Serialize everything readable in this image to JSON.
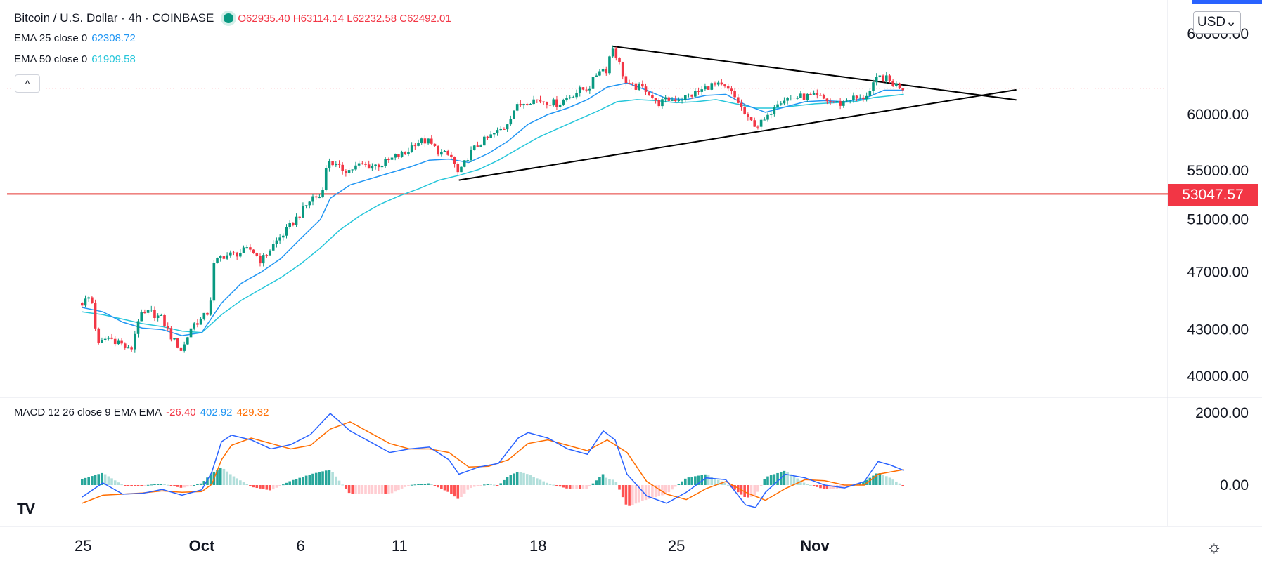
{
  "symbol": {
    "title": "Bitcoin / U.S. Dollar · 4h · COINBASE",
    "ohlc": "O62935.40 H63114.14 L62232.58 C62492.01"
  },
  "indicators": {
    "ema25": {
      "label": "EMA 25 close 0",
      "value": "62308.72",
      "color": "#2196f3"
    },
    "ema50": {
      "label": "EMA 50 close 0",
      "value": "61909.58",
      "color": "#26c6da"
    },
    "macd": {
      "label": "MACD 12 26 close 9 EMA EMA",
      "hist": "-26.40",
      "macd": "402.92",
      "signal": "429.32"
    }
  },
  "controls": {
    "collapse_label": "^",
    "currency_label": "USD",
    "gear_label": "☼",
    "logo_label": "TV"
  },
  "price_badge": "53047.57",
  "colors": {
    "up": "#089981",
    "down": "#f23645",
    "trend": "#000000",
    "support": "#e53935"
  },
  "chart_data": {
    "type": "candlestick",
    "title": "Bitcoin / U.S. Dollar 4h",
    "y_axis_ticks": [
      "68000.00",
      "60000.00",
      "55000.00",
      "51000.00",
      "47000.00",
      "43000.00",
      "40000.00"
    ],
    "macd_axis_ticks": [
      "2000.00",
      "0.00"
    ],
    "x_axis_ticks": [
      "25",
      "Oct",
      "6",
      "11",
      "18",
      "25",
      "Nov"
    ],
    "horizontal_level": 53047.57,
    "trendlines": [
      {
        "name": "upper",
        "from": [
          20.75,
          66700
        ],
        "to": [
          35.5,
          62850
        ]
      },
      {
        "name": "lower",
        "from": [
          13.0,
          54200
        ],
        "to": [
          35.5,
          60700
        ]
      }
    ],
    "close_path": [
      [
        -6.05,
        44800
      ],
      [
        -5.6,
        45300
      ],
      [
        -5.25,
        41900
      ],
      [
        -4.8,
        42500
      ],
      [
        -4.2,
        42200
      ],
      [
        -3.6,
        41500
      ],
      [
        -3.2,
        43800
      ],
      [
        -2.6,
        44200
      ],
      [
        -2.0,
        43700
      ],
      [
        -1.5,
        42400
      ],
      [
        -1.0,
        41600
      ],
      [
        -0.5,
        43300
      ],
      [
        0.0,
        43700
      ],
      [
        0.4,
        44300
      ],
      [
        0.6,
        47500
      ],
      [
        1.0,
        48200
      ],
      [
        1.6,
        48300
      ],
      [
        2.0,
        48500
      ],
      [
        2.5,
        48700
      ],
      [
        3.0,
        47800
      ],
      [
        3.6,
        49000
      ],
      [
        4.2,
        50000
      ],
      [
        5.0,
        51500
      ],
      [
        5.6,
        52800
      ],
      [
        6.0,
        52800
      ],
      [
        6.4,
        56000
      ],
      [
        6.9,
        55200
      ],
      [
        7.4,
        55000
      ],
      [
        8.0,
        55500
      ],
      [
        8.6,
        55400
      ],
      [
        9.2,
        55600
      ],
      [
        9.8,
        56200
      ],
      [
        10.3,
        56500
      ],
      [
        10.8,
        57500
      ],
      [
        11.4,
        57600
      ],
      [
        12.0,
        56600
      ],
      [
        12.6,
        56200
      ],
      [
        13.0,
        54600
      ],
      [
        13.5,
        56400
      ],
      [
        14.0,
        57300
      ],
      [
        14.6,
        58000
      ],
      [
        15.3,
        58800
      ],
      [
        15.8,
        60500
      ],
      [
        16.4,
        61300
      ],
      [
        16.9,
        61400
      ],
      [
        17.5,
        61200
      ],
      [
        18.0,
        61000
      ],
      [
        18.5,
        61600
      ],
      [
        19.0,
        62200
      ],
      [
        19.6,
        62600
      ],
      [
        20.1,
        64400
      ],
      [
        20.45,
        64300
      ],
      [
        20.75,
        66700
      ],
      [
        21.0,
        65500
      ],
      [
        21.5,
        62700
      ],
      [
        22.0,
        62600
      ],
      [
        22.5,
        62400
      ],
      [
        23.0,
        61000
      ],
      [
        23.6,
        61400
      ],
      [
        24.2,
        61500
      ],
      [
        24.7,
        61800
      ],
      [
        25.2,
        62200
      ],
      [
        25.7,
        62800
      ],
      [
        26.2,
        62700
      ],
      [
        26.7,
        62200
      ],
      [
        27.1,
        61200
      ],
      [
        27.6,
        59500
      ],
      [
        28.1,
        59000
      ],
      [
        28.6,
        59600
      ],
      [
        29.0,
        61200
      ],
      [
        29.5,
        61500
      ],
      [
        30.0,
        61600
      ],
      [
        30.6,
        61700
      ],
      [
        31.2,
        61600
      ],
      [
        31.8,
        61200
      ],
      [
        32.3,
        61000
      ],
      [
        32.8,
        61600
      ],
      [
        33.3,
        61400
      ],
      [
        33.8,
        62200
      ],
      [
        34.2,
        63600
      ],
      [
        34.6,
        63400
      ],
      [
        35.0,
        62900
      ],
      [
        35.5,
        62500
      ]
    ],
    "ema25_path": [
      [
        -6.05,
        44500
      ],
      [
        -5.0,
        44200
      ],
      [
        -4.0,
        43500
      ],
      [
        -3.0,
        43100
      ],
      [
        -2.0,
        43000
      ],
      [
        -1.0,
        42600
      ],
      [
        0.0,
        42800
      ],
      [
        1.0,
        44800
      ],
      [
        2.0,
        46200
      ],
      [
        3.0,
        47000
      ],
      [
        4.0,
        48000
      ],
      [
        5.0,
        49500
      ],
      [
        6.0,
        51000
      ],
      [
        6.5,
        52700
      ],
      [
        7.5,
        53800
      ],
      [
        8.5,
        54300
      ],
      [
        9.5,
        54800
      ],
      [
        10.5,
        55300
      ],
      [
        11.5,
        55900
      ],
      [
        12.5,
        56000
      ],
      [
        13.5,
        55700
      ],
      [
        14.5,
        56500
      ],
      [
        15.5,
        57600
      ],
      [
        16.5,
        59100
      ],
      [
        17.5,
        60000
      ],
      [
        18.5,
        60600
      ],
      [
        19.5,
        61400
      ],
      [
        20.5,
        62600
      ],
      [
        21.5,
        63000
      ],
      [
        22.5,
        62300
      ],
      [
        23.5,
        61500
      ],
      [
        24.5,
        61400
      ],
      [
        25.5,
        61800
      ],
      [
        26.5,
        61900
      ],
      [
        27.5,
        60900
      ],
      [
        28.5,
        60200
      ],
      [
        29.5,
        60700
      ],
      [
        30.5,
        61200
      ],
      [
        31.5,
        61300
      ],
      [
        32.5,
        61200
      ],
      [
        33.5,
        61500
      ],
      [
        34.5,
        62300
      ],
      [
        35.5,
        62300
      ]
    ],
    "ema50_path": [
      [
        -6.05,
        44200
      ],
      [
        -5.0,
        44000
      ],
      [
        -4.0,
        43700
      ],
      [
        -3.0,
        43400
      ],
      [
        -2.0,
        43200
      ],
      [
        -1.0,
        42900
      ],
      [
        0.0,
        42800
      ],
      [
        1.0,
        44000
      ],
      [
        2.0,
        45000
      ],
      [
        3.0,
        45800
      ],
      [
        4.0,
        46600
      ],
      [
        5.0,
        47600
      ],
      [
        6.0,
        48800
      ],
      [
        7.0,
        50200
      ],
      [
        8.0,
        51300
      ],
      [
        9.0,
        52200
      ],
      [
        10.0,
        52900
      ],
      [
        11.0,
        53500
      ],
      [
        12.0,
        54200
      ],
      [
        13.0,
        54600
      ],
      [
        14.0,
        55100
      ],
      [
        15.0,
        55900
      ],
      [
        16.0,
        56900
      ],
      [
        17.0,
        57900
      ],
      [
        18.0,
        58700
      ],
      [
        19.0,
        59500
      ],
      [
        20.0,
        60300
      ],
      [
        21.0,
        61200
      ],
      [
        22.0,
        61400
      ],
      [
        23.0,
        61300
      ],
      [
        24.0,
        61100
      ],
      [
        25.0,
        61200
      ],
      [
        26.0,
        61400
      ],
      [
        27.0,
        61000
      ],
      [
        28.0,
        60600
      ],
      [
        29.0,
        60600
      ],
      [
        30.0,
        60800
      ],
      [
        31.0,
        61000
      ],
      [
        32.0,
        61100
      ],
      [
        33.0,
        61200
      ],
      [
        34.0,
        61600
      ],
      [
        35.5,
        61900
      ]
    ],
    "macd_path": [
      [
        -6.05,
        -330
      ],
      [
        -5.0,
        60
      ],
      [
        -4.0,
        -250
      ],
      [
        -3.0,
        -230
      ],
      [
        -2.0,
        -120
      ],
      [
        -1.0,
        -280
      ],
      [
        0.0,
        -130
      ],
      [
        0.5,
        350
      ],
      [
        1.0,
        1200
      ],
      [
        1.5,
        1380
      ],
      [
        2.5,
        1250
      ],
      [
        3.5,
        1000
      ],
      [
        4.5,
        1120
      ],
      [
        5.5,
        1400
      ],
      [
        6.5,
        1980
      ],
      [
        7.5,
        1500
      ],
      [
        8.5,
        1200
      ],
      [
        9.5,
        900
      ],
      [
        10.5,
        1000
      ],
      [
        11.5,
        1050
      ],
      [
        12.5,
        700
      ],
      [
        13.0,
        300
      ],
      [
        14.0,
        500
      ],
      [
        15.0,
        600
      ],
      [
        16.0,
        1300
      ],
      [
        16.5,
        1450
      ],
      [
        17.5,
        1300
      ],
      [
        18.5,
        1000
      ],
      [
        19.5,
        850
      ],
      [
        20.3,
        1500
      ],
      [
        20.9,
        1250
      ],
      [
        21.5,
        300
      ],
      [
        22.5,
        -300
      ],
      [
        23.5,
        -500
      ],
      [
        24.5,
        -200
      ],
      [
        25.5,
        200
      ],
      [
        26.5,
        150
      ],
      [
        27.5,
        -550
      ],
      [
        28.0,
        -620
      ],
      [
        28.5,
        -200
      ],
      [
        29.5,
        300
      ],
      [
        30.5,
        200
      ],
      [
        31.5,
        0
      ],
      [
        32.5,
        -80
      ],
      [
        33.5,
        100
      ],
      [
        34.2,
        650
      ],
      [
        34.8,
        560
      ],
      [
        35.5,
        403
      ]
    ],
    "signal_path": [
      [
        -6.05,
        -500
      ],
      [
        -5.0,
        -280
      ],
      [
        -4.0,
        -250
      ],
      [
        -3.0,
        -220
      ],
      [
        -2.0,
        -160
      ],
      [
        -1.0,
        -200
      ],
      [
        0.0,
        -180
      ],
      [
        0.5,
        20
      ],
      [
        1.0,
        700
      ],
      [
        1.5,
        1100
      ],
      [
        2.5,
        1300
      ],
      [
        3.5,
        1150
      ],
      [
        4.5,
        1000
      ],
      [
        5.5,
        1100
      ],
      [
        6.5,
        1550
      ],
      [
        7.5,
        1750
      ],
      [
        8.5,
        1450
      ],
      [
        9.5,
        1150
      ],
      [
        10.5,
        1000
      ],
      [
        11.5,
        1000
      ],
      [
        12.5,
        900
      ],
      [
        13.5,
        500
      ],
      [
        14.5,
        520
      ],
      [
        15.5,
        700
      ],
      [
        16.5,
        1150
      ],
      [
        17.5,
        1250
      ],
      [
        18.5,
        1100
      ],
      [
        19.5,
        950
      ],
      [
        20.5,
        1250
      ],
      [
        21.5,
        900
      ],
      [
        22.5,
        100
      ],
      [
        23.5,
        -250
      ],
      [
        24.5,
        -400
      ],
      [
        25.5,
        -100
      ],
      [
        26.5,
        100
      ],
      [
        27.5,
        -200
      ],
      [
        28.5,
        -420
      ],
      [
        29.5,
        -100
      ],
      [
        30.5,
        150
      ],
      [
        31.5,
        120
      ],
      [
        32.5,
        0
      ],
      [
        33.5,
        0
      ],
      [
        34.2,
        300
      ],
      [
        35.5,
        429
      ]
    ]
  }
}
